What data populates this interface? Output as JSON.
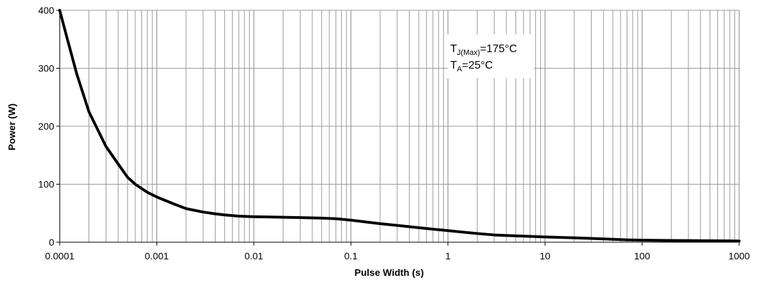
{
  "chart_data": {
    "type": "line",
    "title": "",
    "xlabel": "Pulse Width (s)",
    "ylabel": "Power (W)",
    "xscale": "log",
    "xlim": [
      0.0001,
      1000
    ],
    "ylim": [
      0,
      400
    ],
    "grid": true,
    "x_tick_labels": [
      "0.0001",
      "0.001",
      "0.01",
      "0.1",
      "1",
      "10",
      "100",
      "1000"
    ],
    "y_tick_labels": [
      "0",
      "100",
      "200",
      "300",
      "400"
    ],
    "annotation": {
      "line1_main": "T",
      "line1_sub": "J(Max)",
      "line1_rest": "=175°C",
      "line2_main": "T",
      "line2_sub": "A",
      "line2_rest": "=25°C"
    },
    "colors": {
      "curve": "#000000",
      "grid": "#999999",
      "axis": "#000000"
    },
    "series": [
      {
        "x": [
          0.0001,
          0.00012,
          0.00015,
          0.0002,
          0.0003,
          0.0004,
          0.0005,
          0.0006,
          0.0008,
          0.001,
          0.0015,
          0.002,
          0.003,
          0.004,
          0.005,
          0.007,
          0.01,
          0.02,
          0.03,
          0.05,
          0.07,
          0.1,
          0.15,
          0.2,
          0.3,
          0.5,
          0.7,
          1,
          1.5,
          2,
          3,
          5,
          7,
          10,
          20,
          30,
          50,
          70,
          100,
          200,
          300,
          500,
          700,
          1000
        ],
        "values": [
          400,
          350,
          290,
          225,
          165,
          135,
          112,
          100,
          86,
          78,
          66,
          58,
          52,
          49,
          47,
          45,
          44,
          43,
          42.5,
          41.5,
          40.5,
          38,
          34.5,
          32,
          29,
          25,
          22.5,
          20,
          17,
          15,
          12.5,
          11,
          10,
          9,
          7.5,
          6.5,
          5,
          4,
          3.5,
          3,
          2.8,
          2.5,
          2.3,
          2
        ]
      }
    ]
  }
}
